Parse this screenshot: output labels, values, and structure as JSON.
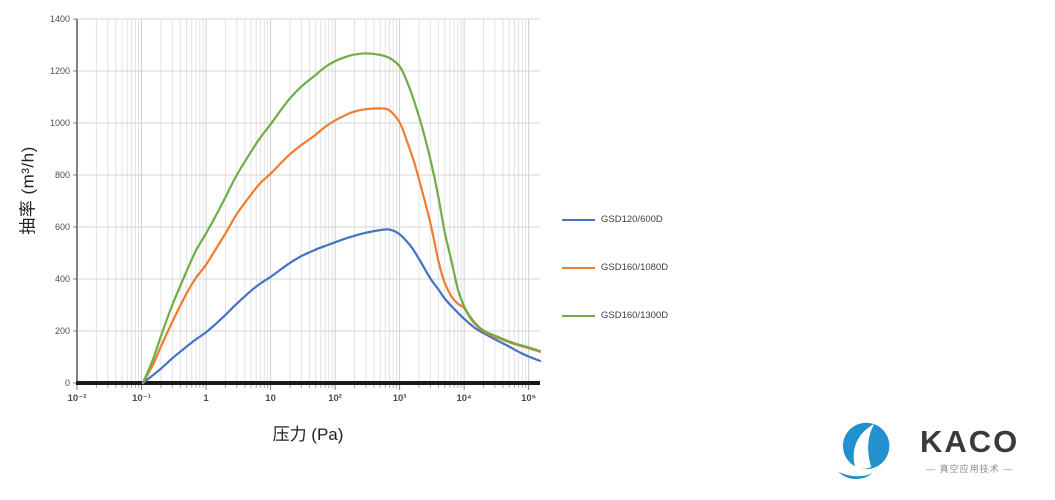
{
  "chart_data": {
    "type": "line",
    "title": "",
    "xlabel": "压力 (Pa)",
    "ylabel": "抽率 (m³/h)",
    "x_scale": "log",
    "xlim": [
      0.01,
      150000
    ],
    "ylim": [
      0,
      1400
    ],
    "y_tick_step": 200,
    "x_tick_labels": [
      "10⁻²",
      "10⁻¹",
      "1",
      "10",
      "10²",
      "10³",
      "10⁴",
      "10⁵"
    ],
    "x_tick_values": [
      0.01,
      0.1,
      1,
      10,
      100,
      1000,
      10000,
      100000
    ],
    "grid": "on",
    "legend_position": "right",
    "colors": {
      "axis": "#1a1a1a",
      "y_axis_line": "#595959",
      "grid_minor": "#e2e2e2",
      "grid_major": "#cfcfcf",
      "grid_horizontal": "#d6d6d6",
      "tick_text": "#4d4d4d"
    },
    "series": [
      {
        "name": "GSD120/600D",
        "color": "#4472C4",
        "points": [
          [
            0.105,
            0
          ],
          [
            0.15,
            30
          ],
          [
            0.2,
            55
          ],
          [
            0.3,
            95
          ],
          [
            0.5,
            140
          ],
          [
            0.7,
            168
          ],
          [
            1,
            195
          ],
          [
            1.5,
            233
          ],
          [
            2,
            262
          ],
          [
            3,
            305
          ],
          [
            5,
            355
          ],
          [
            7,
            383
          ],
          [
            10,
            408
          ],
          [
            15,
            440
          ],
          [
            20,
            462
          ],
          [
            30,
            488
          ],
          [
            50,
            513
          ],
          [
            70,
            527
          ],
          [
            100,
            541
          ],
          [
            150,
            557
          ],
          [
            200,
            566
          ],
          [
            300,
            578
          ],
          [
            500,
            588
          ],
          [
            700,
            590
          ],
          [
            1000,
            572
          ],
          [
            1500,
            525
          ],
          [
            2000,
            477
          ],
          [
            3000,
            402
          ],
          [
            4000,
            360
          ],
          [
            5000,
            325
          ],
          [
            7000,
            285
          ],
          [
            10000,
            247
          ],
          [
            15000,
            210
          ],
          [
            20000,
            192
          ],
          [
            30000,
            168
          ],
          [
            50000,
            140
          ],
          [
            70000,
            120
          ],
          [
            100000,
            102
          ],
          [
            150000,
            85
          ]
        ]
      },
      {
        "name": "GSD160/1080D",
        "color": "#ED7D31",
        "points": [
          [
            0.105,
            0
          ],
          [
            0.15,
            70
          ],
          [
            0.2,
            140
          ],
          [
            0.3,
            235
          ],
          [
            0.5,
            345
          ],
          [
            0.7,
            405
          ],
          [
            1,
            455
          ],
          [
            1.5,
            525
          ],
          [
            2,
            575
          ],
          [
            3,
            650
          ],
          [
            5,
            725
          ],
          [
            7,
            770
          ],
          [
            10,
            805
          ],
          [
            15,
            850
          ],
          [
            20,
            880
          ],
          [
            30,
            915
          ],
          [
            50,
            955
          ],
          [
            70,
            985
          ],
          [
            100,
            1010
          ],
          [
            150,
            1032
          ],
          [
            200,
            1044
          ],
          [
            300,
            1053
          ],
          [
            500,
            1056
          ],
          [
            700,
            1048
          ],
          [
            1000,
            1002
          ],
          [
            1300,
            930
          ],
          [
            1700,
            845
          ],
          [
            2200,
            745
          ],
          [
            3000,
            615
          ],
          [
            4000,
            470
          ],
          [
            5000,
            385
          ],
          [
            6500,
            330
          ],
          [
            8000,
            305
          ],
          [
            10000,
            288
          ],
          [
            13000,
            243
          ],
          [
            17000,
            212
          ],
          [
            22000,
            193
          ],
          [
            30000,
            178
          ],
          [
            50000,
            157
          ],
          [
            70000,
            145
          ],
          [
            100000,
            134
          ],
          [
            150000,
            120
          ]
        ]
      },
      {
        "name": "GSD160/1300D",
        "color": "#70AD47",
        "points": [
          [
            0.105,
            0
          ],
          [
            0.15,
            90
          ],
          [
            0.2,
            180
          ],
          [
            0.3,
            300
          ],
          [
            0.5,
            430
          ],
          [
            0.7,
            510
          ],
          [
            1,
            575
          ],
          [
            1.5,
            655
          ],
          [
            2,
            715
          ],
          [
            3,
            800
          ],
          [
            5,
            890
          ],
          [
            7,
            945
          ],
          [
            10,
            995
          ],
          [
            15,
            1055
          ],
          [
            20,
            1095
          ],
          [
            30,
            1140
          ],
          [
            50,
            1185
          ],
          [
            70,
            1215
          ],
          [
            100,
            1238
          ],
          [
            150,
            1255
          ],
          [
            200,
            1263
          ],
          [
            300,
            1268
          ],
          [
            500,
            1262
          ],
          [
            700,
            1250
          ],
          [
            1000,
            1218
          ],
          [
            1300,
            1160
          ],
          [
            1700,
            1080
          ],
          [
            2200,
            990
          ],
          [
            3000,
            860
          ],
          [
            4000,
            715
          ],
          [
            5000,
            580
          ],
          [
            6500,
            460
          ],
          [
            8000,
            360
          ],
          [
            10000,
            295
          ],
          [
            13000,
            248
          ],
          [
            17000,
            215
          ],
          [
            22000,
            196
          ],
          [
            30000,
            182
          ],
          [
            50000,
            160
          ],
          [
            70000,
            148
          ],
          [
            100000,
            137
          ],
          [
            150000,
            123
          ]
        ]
      }
    ]
  },
  "branding": {
    "logo_text": "KACO",
    "tagline": "— 真空应用技术 —",
    "logo_color": "#2191cf"
  }
}
